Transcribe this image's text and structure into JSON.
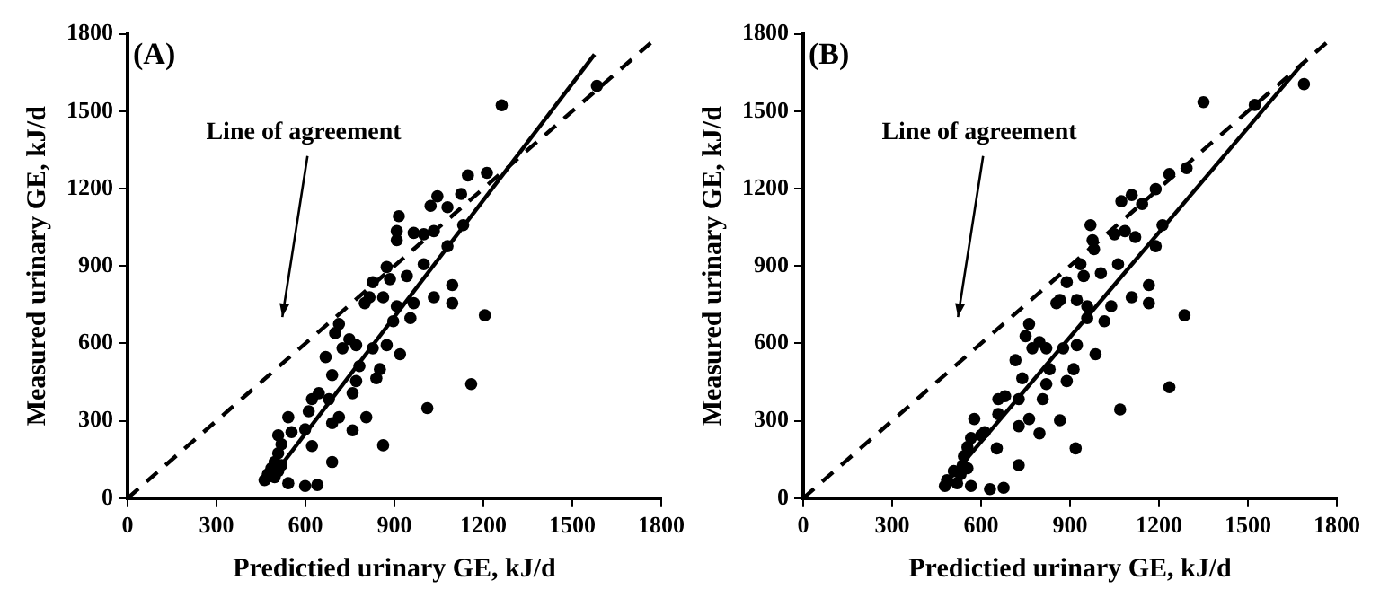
{
  "chart_data": [
    {
      "type": "scatter",
      "title": "(A)",
      "xlabel": "Predictied urinary GE, kJ/d",
      "ylabel": "Measured urinary GE, kJ/d",
      "xlim": [
        0,
        1800
      ],
      "ylim": [
        0,
        1800
      ],
      "xticks": [
        0,
        300,
        600,
        900,
        1200,
        1500,
        1800
      ],
      "yticks": [
        0,
        300,
        600,
        900,
        1200,
        1500,
        1800
      ],
      "grid": false,
      "legend": false,
      "annotations": [
        "Line of agreement"
      ],
      "series": [
        {
          "type": "scatter",
          "color": "#000000",
          "marker": "circle",
          "x": [
            1262,
            1583,
            1148,
            1212,
            1125,
            1045,
            1079,
            1022,
            915,
            908,
            908,
            965,
            999,
            1033,
            1132,
            1079,
            999,
            942,
            874,
            885,
            1095,
            1033,
            1095,
            1205,
            827,
            816,
            800,
            862,
            908,
            954,
            896,
            965,
            713,
            700,
            748,
            771,
            725,
            827,
            874,
            919,
            668,
            782,
            851,
            771,
            839,
            690,
            645,
            622,
            679,
            759,
            1159,
            1011,
            713,
            759,
            805,
            690,
            542,
            599,
            611,
            508,
            553,
            622,
            862,
            690,
            519,
            508,
            496,
            519,
            473,
            496,
            462,
            542,
            599,
            640,
            508,
            485
          ],
          "values": [
            1523,
            1598,
            1251,
            1261,
            1179,
            1170,
            1128,
            1133,
            1093,
            1035,
            1000,
            1028,
            1023,
            1035,
            1058,
            977,
            907,
            861,
            896,
            849,
            826,
            779,
            756,
            709,
            837,
            779,
            756,
            779,
            744,
            698,
            686,
            756,
            675,
            640,
            616,
            593,
            581,
            581,
            593,
            558,
            547,
            512,
            500,
            454,
            465,
            477,
            407,
            384,
            384,
            407,
            442,
            349,
            314,
            263,
            314,
            291,
            314,
            267,
            337,
            244,
            256,
            202,
            205,
            140,
            209,
            174,
            140,
            128,
            93,
            81,
            70,
            58,
            47,
            51,
            105,
            116
          ]
        },
        {
          "type": "line",
          "color": "#000000",
          "marker": "none",
          "line_style": "solid",
          "x": [
            470,
            1575
          ],
          "values": [
            55,
            1720
          ]
        },
        {
          "type": "line",
          "color": "#000000",
          "marker": "none",
          "line_style": "dashed",
          "x": [
            0,
            1770
          ],
          "values": [
            0,
            1770
          ]
        }
      ]
    },
    {
      "type": "scatter",
      "title": "(B)",
      "xlabel": "Predictied urinary GE, kJ/d",
      "ylabel": "Measured urinary GE, kJ/d",
      "xlim": [
        0,
        1800
      ],
      "ylim": [
        0,
        1800
      ],
      "xticks": [
        0,
        300,
        600,
        900,
        1200,
        1500,
        1800
      ],
      "yticks": [
        0,
        300,
        600,
        900,
        1200,
        1500,
        1800
      ],
      "grid": false,
      "legend": false,
      "annotations": [
        "Line of agreement"
      ],
      "series": [
        {
          "type": "scatter",
          "color": "#000000",
          "marker": "circle",
          "x": [
            1350,
            1689,
            1523,
            1235,
            1293,
            1189,
            1108,
            1143,
            1073,
            969,
            976,
            981,
            1050,
            1085,
            1120,
            1212,
            1189,
            1062,
            1004,
            935,
            946,
            1166,
            1108,
            1166,
            1286,
            889,
            866,
            854,
            923,
            958,
            1016,
            958,
            1039,
            762,
            750,
            797,
            820,
            773,
            877,
            923,
            986,
            716,
            831,
            912,
            820,
            889,
            739,
            681,
            658,
            727,
            808,
            1235,
            1069,
            762,
            797,
            866,
            727,
            577,
            612,
            658,
            566,
            600,
            653,
            919,
            727,
            554,
            542,
            538,
            554,
            485,
            519,
            478,
            566,
            630,
            676,
            531,
            508
          ],
          "values": [
            1535,
            1605,
            1524,
            1256,
            1279,
            1198,
            1175,
            1140,
            1151,
            1058,
            1000,
            965,
            1023,
            1035,
            1012,
            1058,
            977,
            907,
            872,
            907,
            861,
            826,
            779,
            756,
            709,
            837,
            768,
            756,
            768,
            744,
            686,
            698,
            744,
            675,
            628,
            605,
            581,
            581,
            581,
            593,
            558,
            535,
            500,
            500,
            442,
            454,
            465,
            395,
            384,
            384,
            384,
            430,
            344,
            307,
            251,
            302,
            279,
            307,
            256,
            326,
            233,
            244,
            193,
            193,
            128,
            198,
            163,
            128,
            116,
            70,
            58,
            47,
            47,
            35,
            40,
            93,
            105
          ]
        },
        {
          "type": "line",
          "color": "#000000",
          "marker": "none",
          "line_style": "solid",
          "x": [
            473,
            1685
          ],
          "values": [
            47,
            1686
          ]
        },
        {
          "type": "line",
          "color": "#000000",
          "marker": "none",
          "line_style": "dashed",
          "x": [
            0,
            1780
          ],
          "values": [
            0,
            1780
          ]
        }
      ]
    }
  ]
}
